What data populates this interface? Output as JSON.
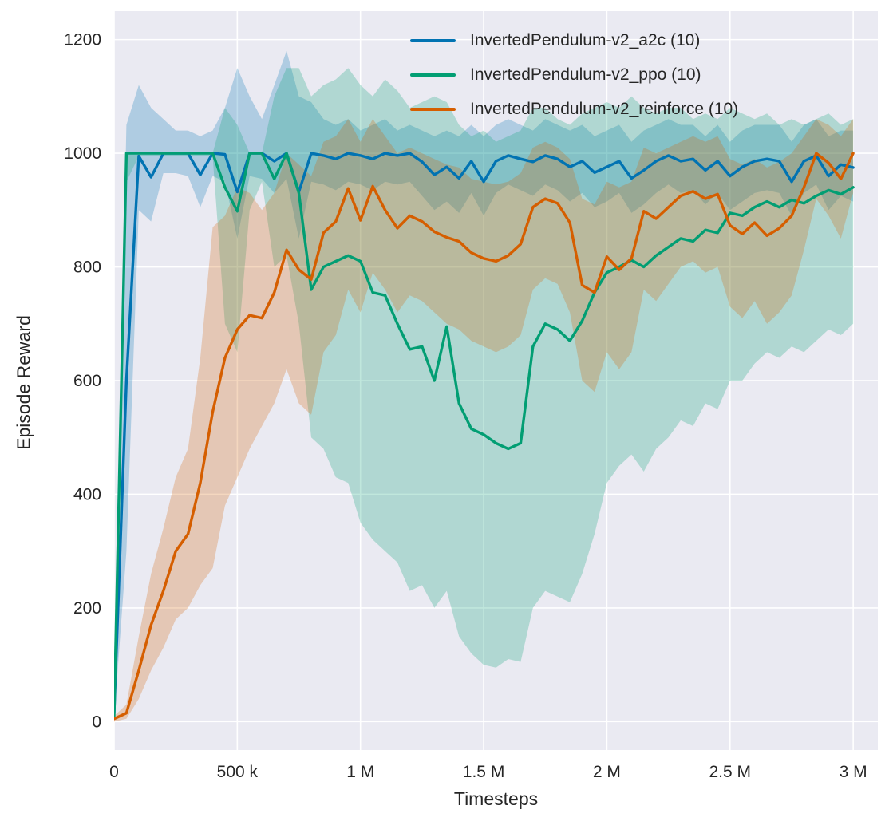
{
  "colors": {
    "figure_background": "#ffffff",
    "plot_background": "#eaeaf2",
    "grid": "#ffffff",
    "text": "#262626"
  },
  "chart_data": {
    "type": "line",
    "title": "",
    "xlabel": "Timesteps",
    "ylabel": "Episode Reward",
    "xlim": [
      0,
      3100000
    ],
    "ylim": [
      -50,
      1250
    ],
    "grid": true,
    "legend_position": "upper center-right",
    "xticks": {
      "values": [
        0,
        500000,
        1000000,
        1500000,
        2000000,
        2500000,
        3000000
      ],
      "labels": [
        "0",
        "500 k",
        "1 M",
        "1.5 M",
        "2 M",
        "2.5 M",
        "3 M"
      ]
    },
    "yticks": {
      "values": [
        0,
        200,
        400,
        600,
        800,
        1000,
        1200
      ],
      "labels": [
        "0",
        "200",
        "400",
        "600",
        "800",
        "1000",
        "1200"
      ]
    },
    "x": [
      0,
      50000,
      100000,
      150000,
      200000,
      250000,
      300000,
      350000,
      400000,
      450000,
      500000,
      550000,
      600000,
      650000,
      700000,
      750000,
      800000,
      850000,
      900000,
      950000,
      1000000,
      1050000,
      1100000,
      1150000,
      1200000,
      1250000,
      1300000,
      1350000,
      1400000,
      1450000,
      1500000,
      1550000,
      1600000,
      1650000,
      1700000,
      1750000,
      1800000,
      1850000,
      1900000,
      1950000,
      2000000,
      2050000,
      2100000,
      2150000,
      2200000,
      2250000,
      2300000,
      2350000,
      2400000,
      2450000,
      2500000,
      2550000,
      2600000,
      2650000,
      2700000,
      2750000,
      2800000,
      2850000,
      2900000,
      2950000,
      3000000
    ],
    "series": [
      {
        "name": "InvertedPendulum-v2_a2c (10)",
        "color": "#0173b2",
        "values": [
          15,
          600,
          995,
          958,
          1000,
          1000,
          1000,
          962,
          1000,
          998,
          932,
          1000,
          1000,
          986,
          1000,
          932,
          1000,
          996,
          990,
          1000,
          996,
          990,
          1000,
          996,
          1000,
          985,
          962,
          976,
          956,
          986,
          950,
          986,
          996,
          990,
          985,
          996,
          990,
          976,
          986,
          966,
          976,
          986,
          956,
          970,
          986,
          996,
          986,
          990,
          970,
          986,
          960,
          976,
          986,
          990,
          986,
          950,
          986,
          996,
          960,
          980,
          975
        ],
        "band_low": [
          5,
          300,
          900,
          880,
          965,
          965,
          960,
          905,
          960,
          950,
          850,
          960,
          955,
          930,
          955,
          850,
          950,
          945,
          935,
          950,
          945,
          935,
          950,
          945,
          950,
          925,
          900,
          915,
          895,
          930,
          890,
          930,
          945,
          935,
          925,
          945,
          935,
          915,
          930,
          905,
          915,
          930,
          895,
          910,
          930,
          945,
          930,
          935,
          910,
          930,
          900,
          915,
          930,
          935,
          930,
          890,
          930,
          945,
          900,
          925,
          915
        ],
        "band_high": [
          30,
          1050,
          1120,
          1080,
          1060,
          1040,
          1040,
          1030,
          1040,
          1080,
          1150,
          1100,
          1060,
          1120,
          1180,
          1100,
          1090,
          1060,
          1050,
          1060,
          1040,
          1050,
          1060,
          1040,
          1050,
          1040,
          1030,
          1040,
          1030,
          1050,
          1030,
          1050,
          1060,
          1050,
          1040,
          1060,
          1050,
          1040,
          1050,
          1030,
          1040,
          1050,
          1020,
          1040,
          1050,
          1060,
          1050,
          1050,
          1030,
          1050,
          1020,
          1040,
          1050,
          1050,
          1050,
          1020,
          1050,
          1060,
          1030,
          1040,
          1040
        ]
      },
      {
        "name": "InvertedPendulum-v2_ppo (10)",
        "color": "#029e73",
        "values": [
          10,
          1000,
          1000,
          1000,
          1000,
          1000,
          1000,
          1000,
          1000,
          940,
          898,
          1000,
          1000,
          955,
          1000,
          930,
          760,
          800,
          810,
          820,
          810,
          755,
          750,
          700,
          655,
          660,
          600,
          695,
          560,
          515,
          505,
          490,
          480,
          490,
          660,
          700,
          690,
          670,
          705,
          755,
          790,
          800,
          812,
          800,
          820,
          835,
          850,
          845,
          865,
          860,
          895,
          890,
          905,
          915,
          905,
          918,
          912,
          925,
          935,
          928,
          940
        ],
        "band_low": [
          5,
          950,
          995,
          995,
          995,
          995,
          995,
          995,
          995,
          700,
          650,
          900,
          950,
          800,
          820,
          700,
          500,
          480,
          430,
          420,
          350,
          320,
          300,
          280,
          230,
          240,
          200,
          230,
          150,
          120,
          100,
          95,
          110,
          105,
          200,
          230,
          220,
          210,
          260,
          330,
          420,
          450,
          470,
          440,
          480,
          500,
          530,
          520,
          560,
          550,
          600,
          600,
          630,
          650,
          640,
          660,
          650,
          670,
          690,
          680,
          700
        ],
        "band_high": [
          20,
          1000,
          1000,
          1000,
          1000,
          1000,
          1000,
          1000,
          1000,
          1080,
          1050,
          1000,
          1000,
          1100,
          1150,
          1150,
          1100,
          1120,
          1130,
          1150,
          1120,
          1100,
          1130,
          1110,
          1080,
          1090,
          1100,
          1090,
          1050,
          1030,
          1040,
          1020,
          1030,
          1040,
          1080,
          1080,
          1060,
          1050,
          1070,
          1080,
          1090,
          1080,
          1100,
          1080,
          1070,
          1080,
          1080,
          1060,
          1070,
          1060,
          1080,
          1070,
          1060,
          1070,
          1050,
          1060,
          1050,
          1060,
          1070,
          1050,
          1060
        ]
      },
      {
        "name": "InvertedPendulum-v2_reinforce (10)",
        "color": "#d55e00",
        "values": [
          5,
          15,
          90,
          170,
          230,
          300,
          330,
          420,
          545,
          640,
          690,
          715,
          710,
          755,
          830,
          795,
          778,
          860,
          880,
          938,
          882,
          942,
          900,
          868,
          890,
          880,
          862,
          852,
          845,
          825,
          815,
          810,
          820,
          840,
          905,
          920,
          912,
          878,
          768,
          755,
          818,
          795,
          815,
          898,
          885,
          905,
          925,
          933,
          920,
          928,
          873,
          858,
          878,
          855,
          868,
          890,
          940,
          1000,
          983,
          955,
          1000
        ],
        "band_low": [
          0,
          5,
          40,
          90,
          130,
          180,
          200,
          240,
          270,
          380,
          430,
          480,
          520,
          560,
          620,
          560,
          540,
          650,
          680,
          760,
          720,
          790,
          760,
          720,
          750,
          740,
          720,
          700,
          690,
          670,
          660,
          650,
          660,
          680,
          760,
          780,
          770,
          720,
          600,
          580,
          650,
          620,
          650,
          760,
          740,
          770,
          800,
          810,
          790,
          800,
          730,
          710,
          740,
          700,
          720,
          750,
          830,
          920,
          890,
          850,
          930
        ],
        "band_high": [
          10,
          30,
          150,
          260,
          340,
          430,
          480,
          640,
          870,
          890,
          940,
          930,
          900,
          930,
          1000,
          980,
          960,
          1020,
          1030,
          1060,
          1020,
          1060,
          1030,
          1000,
          1010,
          1000,
          990,
          980,
          975,
          955,
          950,
          945,
          950,
          965,
          1010,
          1020,
          1010,
          990,
          920,
          910,
          950,
          940,
          950,
          1010,
          1000,
          1010,
          1020,
          1030,
          1020,
          1030,
          990,
          980,
          990,
          975,
          985,
          1000,
          1030,
          1060,
          1050,
          1030,
          1060
        ]
      }
    ]
  }
}
